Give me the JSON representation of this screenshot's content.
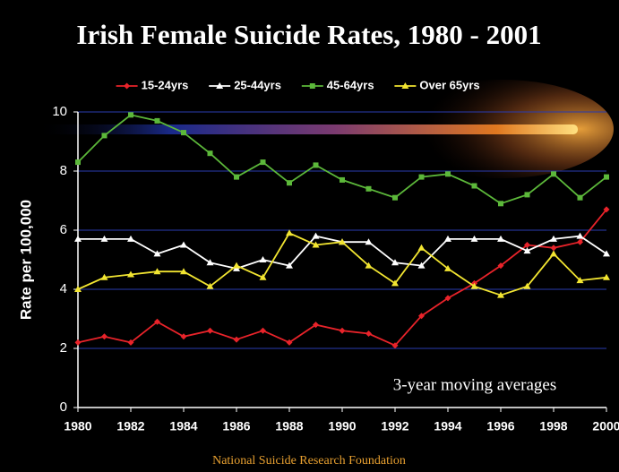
{
  "chart_data": {
    "type": "line",
    "title": "Irish Female Suicide Rates, 1980 - 2001",
    "y_label": "Rate per 100,000",
    "annotation": "3-year moving averages",
    "source": "National Suicide Research Foundation",
    "x": [
      1980,
      1981,
      1982,
      1983,
      1984,
      1985,
      1986,
      1987,
      1988,
      1989,
      1990,
      1991,
      1992,
      1993,
      1994,
      1995,
      1996,
      1997,
      1998,
      1999,
      2000
    ],
    "xlim": [
      1980,
      2000
    ],
    "xticks": [
      1980,
      1982,
      1984,
      1986,
      1988,
      1990,
      1992,
      1994,
      1996,
      1998,
      2000
    ],
    "ylim": [
      0,
      10
    ],
    "yticks": [
      0,
      2,
      4,
      6,
      8,
      10
    ],
    "grid": true,
    "legend": "top",
    "series": [
      {
        "name": "15-24yrs",
        "color": "#e8232a",
        "values": [
          2.2,
          2.4,
          2.2,
          2.9,
          2.4,
          2.6,
          2.3,
          2.6,
          2.2,
          2.8,
          2.6,
          2.5,
          2.1,
          3.1,
          3.7,
          4.2,
          4.8,
          5.5,
          5.4,
          5.6,
          6.7
        ]
      },
      {
        "name": "25-44yrs",
        "color": "#ffffff",
        "values": [
          5.7,
          5.7,
          5.7,
          5.2,
          5.5,
          4.9,
          4.7,
          5.0,
          4.8,
          5.8,
          5.6,
          5.6,
          4.9,
          4.8,
          5.7,
          5.7,
          5.7,
          5.3,
          5.7,
          5.8,
          5.2
        ]
      },
      {
        "name": "45-64yrs",
        "color": "#5cb83a",
        "values": [
          8.3,
          9.2,
          9.9,
          9.7,
          9.3,
          8.6,
          7.8,
          8.3,
          7.6,
          8.2,
          7.7,
          7.4,
          7.1,
          7.8,
          7.9,
          7.5,
          6.9,
          7.2,
          7.9,
          7.1,
          7.8
        ]
      },
      {
        "name": "Over 65yrs",
        "color": "#f2e531",
        "values": [
          4.0,
          4.4,
          4.5,
          4.6,
          4.6,
          4.1,
          4.8,
          4.4,
          5.9,
          5.5,
          5.6,
          4.8,
          4.2,
          5.4,
          4.7,
          4.1,
          3.8,
          4.1,
          5.2,
          4.3,
          4.4
        ]
      }
    ]
  }
}
